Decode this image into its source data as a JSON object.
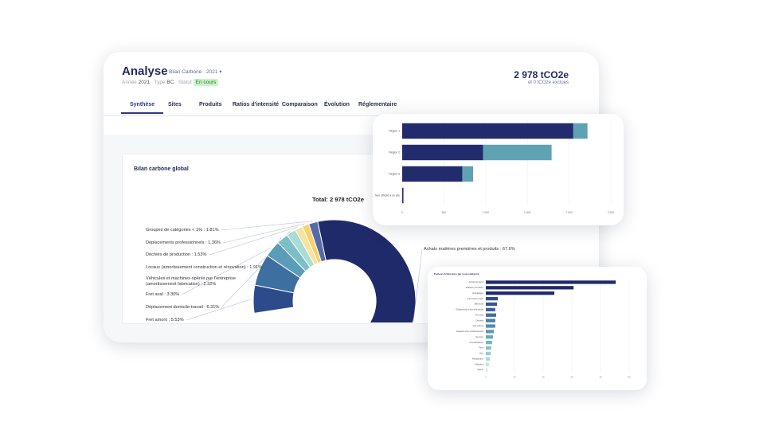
{
  "header": {
    "title": "Analyse",
    "subtitle": "Bilan Carbone · 2021 ▾",
    "meta": [
      {
        "label": "Année",
        "value": "2021"
      },
      {
        "label": "Type",
        "value": "BC"
      },
      {
        "label": "Statut",
        "value": "En cours"
      }
    ],
    "total": "2 978 tCO2e",
    "excluded": "et 0 tCO2e exclues"
  },
  "tabs": {
    "items": [
      "Synthèse",
      "Sites",
      "Produits",
      "Ratios d'intensité",
      "Comparaison",
      "Évolution",
      "Réglementaire"
    ],
    "active": 0
  },
  "chart_data": [
    {
      "type": "pie",
      "title": "Bilan carbone global",
      "subtitle": "Total: 2 978 tCO2e",
      "labels": [
        "Achats matières premières et produits : 67.6%",
        "Groupes de catégories < 1% : 1.81%",
        "Déplacements professionnels : 1.36%",
        "Déchets de production : 1.53%",
        "Locaux (amortissement construction et rénovation) : 1.91%",
        "Véhicules et machines opérés par l'entreprise (amortissement fabrication) : 2.32%",
        "Fret aval : 3.30%",
        "Déplacement domicile-travail : 6.31%",
        "Fret amont : 5.53%"
      ],
      "values": [
        67.6,
        1.81,
        1.36,
        1.53,
        1.91,
        2.32,
        3.3,
        6.31,
        5.53
      ],
      "colors": [
        "#1f2a6b",
        "#5968a6",
        "#f4d36b",
        "#f7e3a0",
        "#a9dcd3",
        "#7dbfc6",
        "#5b9cb8",
        "#3d6fa0",
        "#2b4b8a"
      ]
    },
    {
      "type": "bar",
      "orientation": "horizontal",
      "stacked": true,
      "categories": [
        "Région 1",
        "Région 2",
        "Région 3",
        "Non affecté à un site"
      ],
      "series": [
        {
          "color": "#222b6b",
          "values": [
            2050,
            970,
            720,
            15
          ]
        },
        {
          "color": "#5fa3b3",
          "values": [
            170,
            820,
            130,
            0
          ]
        }
      ],
      "xlim": [
        0,
        2500
      ],
      "xticks": [
        0,
        500,
        {
          "value": 1000,
          "label": "1 000"
        },
        {
          "value": 1500,
          "label": "1 500"
        },
        {
          "value": 2000,
          "label": "2 000"
        },
        {
          "value": 2500,
          "label": "2 500"
        }
      ],
      "grid": true
    },
    {
      "type": "bar",
      "orientation": "horizontal",
      "title": "Facteur d'émissions par sous-catégorie",
      "categories": [
        "Achats de biens",
        "Matières premières",
        "Emballages",
        "Fret amont routier",
        "Électricité",
        "Déplacements domicile-travail",
        "Fret aval",
        "Déchets",
        "Gaz naturel",
        "Déplacements professionnels",
        "Services",
        "Immobilisations",
        "Fioul",
        "Eau",
        "Réfrigérants",
        "Véhicules",
        "Papier"
      ],
      "values": [
        45.3,
        30.6,
        23.9,
        4.2,
        3.9,
        3.3,
        3.6,
        3.3,
        3.3,
        2.8,
        2.5,
        2.2,
        1.9,
        1.7,
        1.4,
        1.1,
        0.6
      ],
      "colors": [
        "#1f2a6b",
        "#1f2a6b",
        "#1f2a6b",
        "#2f4a88",
        "#34558f",
        "#3a6196",
        "#406d9d",
        "#4a7ea8",
        "#528bb0",
        "#5b99b6",
        "#66a8bb",
        "#72b6c0",
        "#82c3c6",
        "#94cfcb",
        "#a8dbd3",
        "#bce5dc",
        "#d0efe7"
      ],
      "xlim": [
        0,
        50
      ],
      "xticks": [
        0,
        10,
        20,
        30,
        40,
        50
      ],
      "grid": true
    }
  ]
}
